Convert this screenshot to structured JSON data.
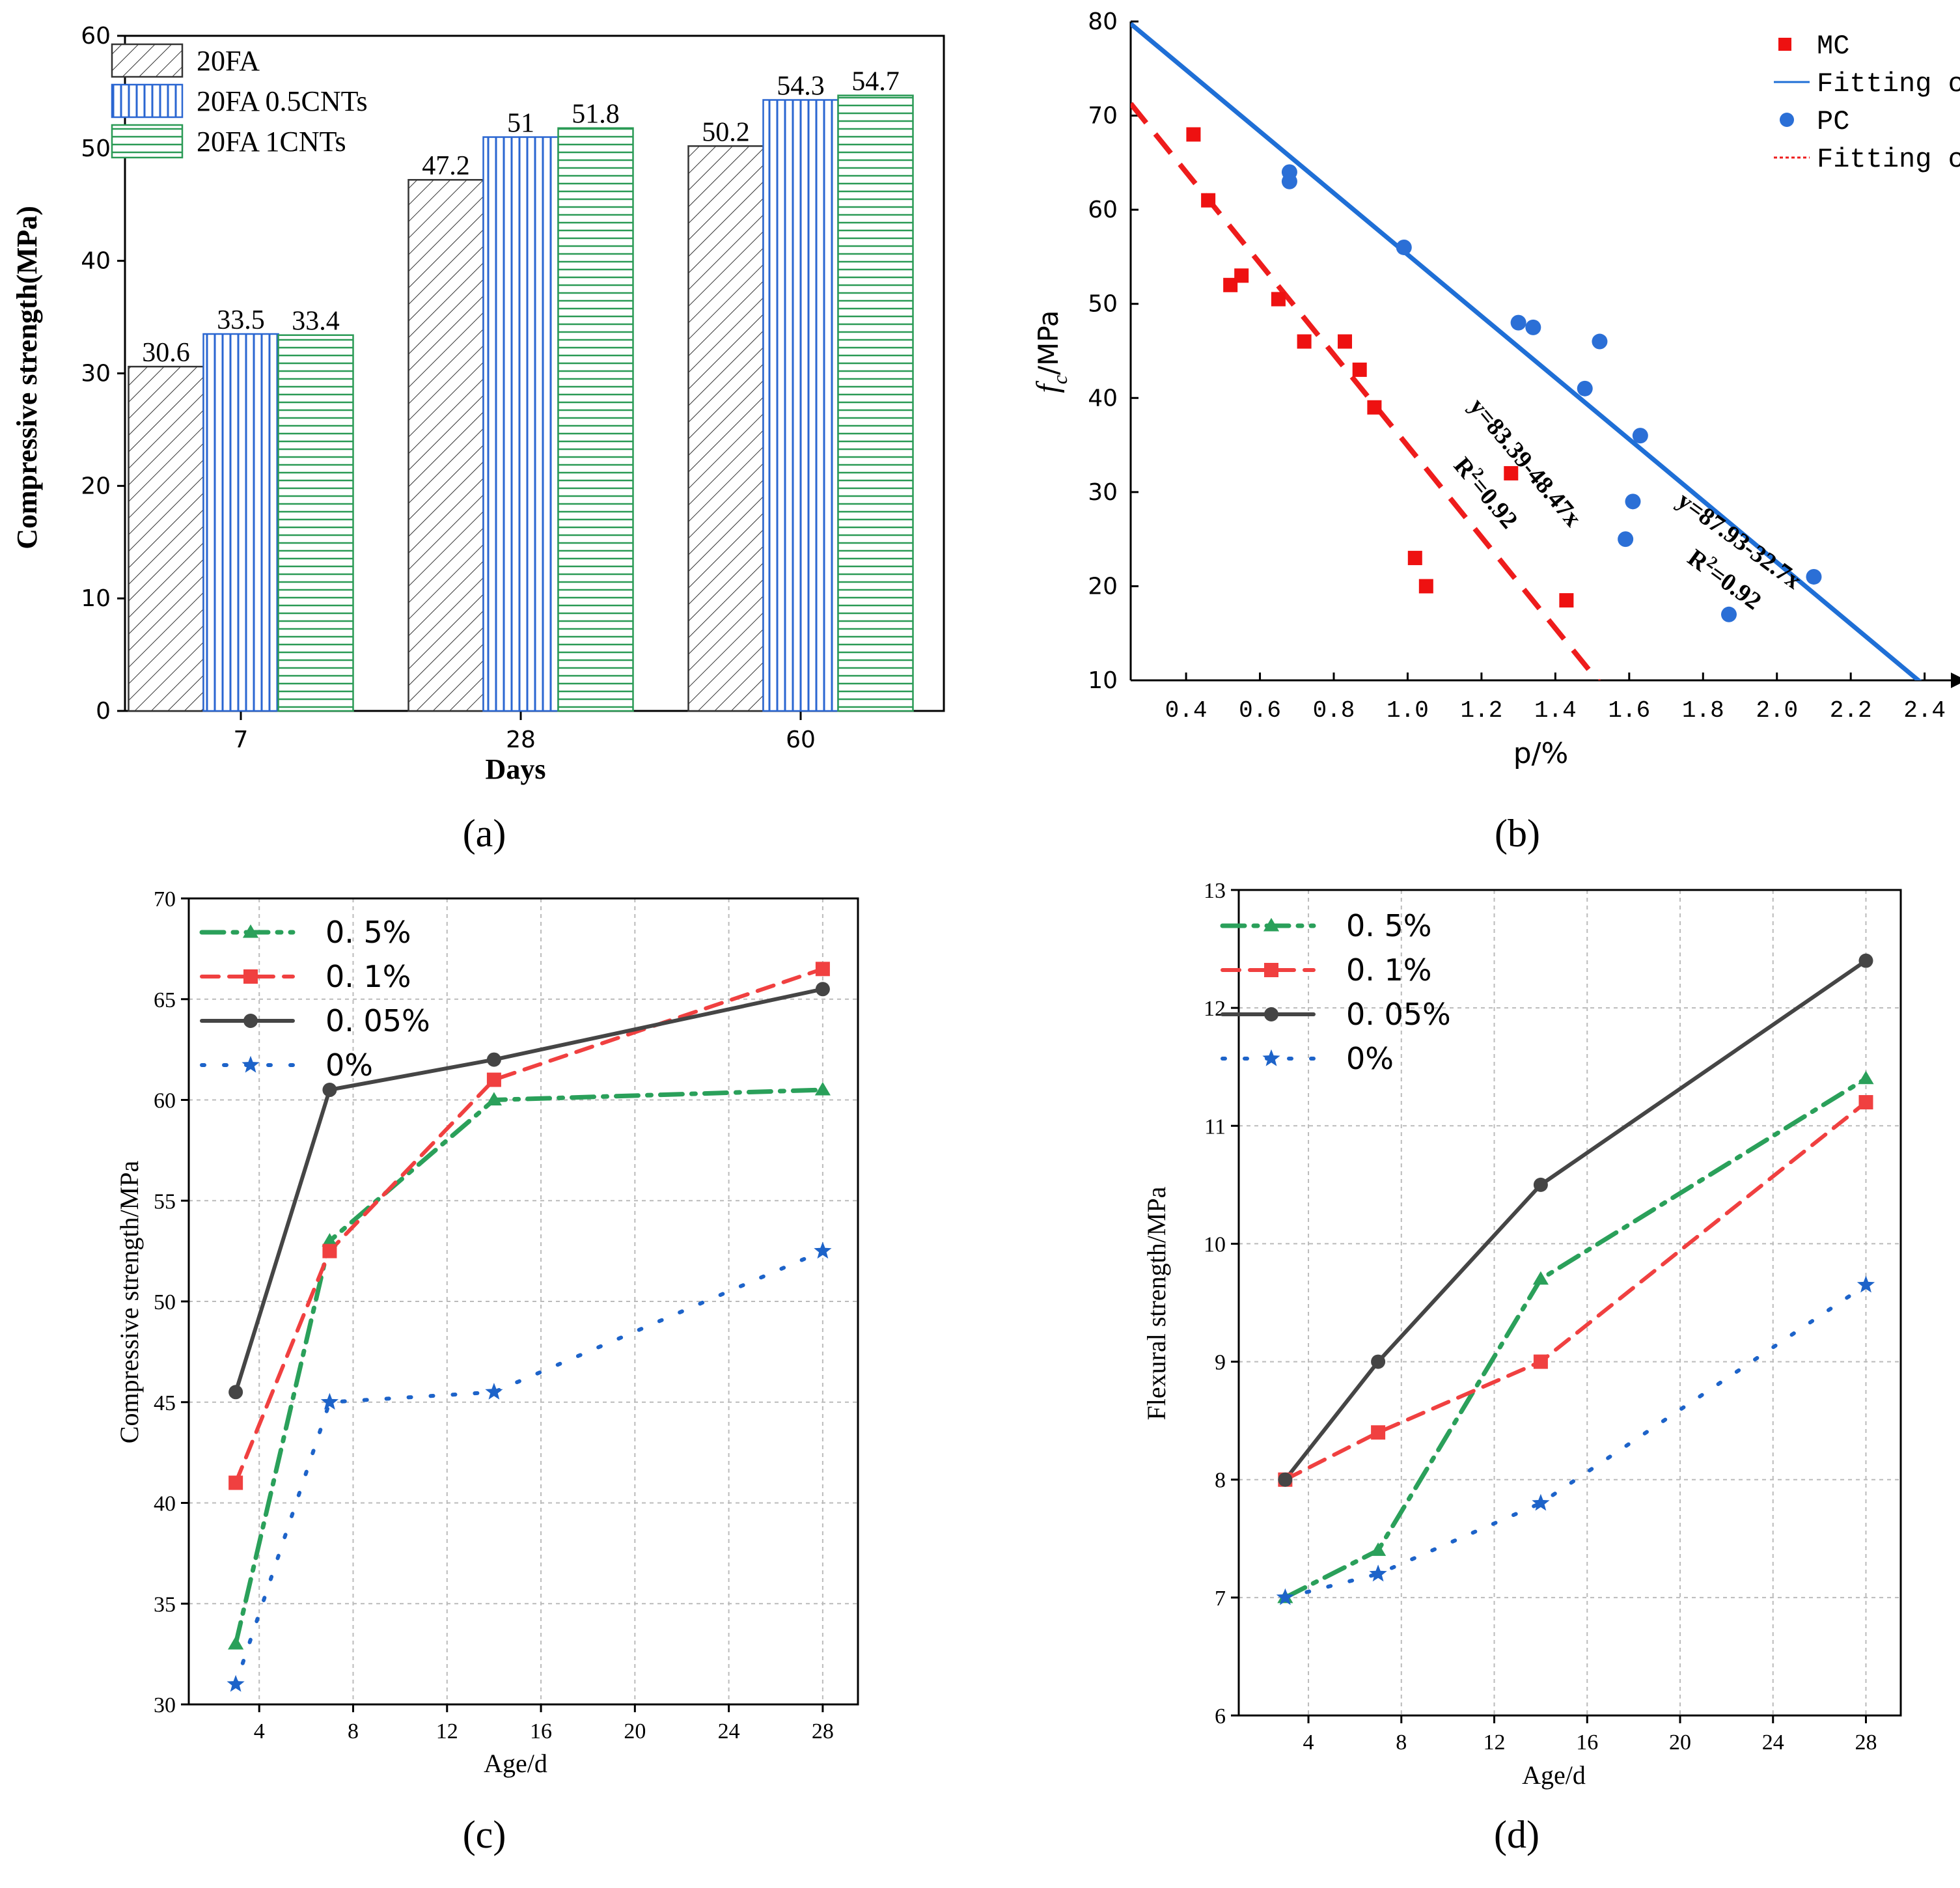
{
  "colors": {
    "black": "#000000",
    "red": "#ee1c1c",
    "blue": "#1f6fd6",
    "mcRed": "#ee1111",
    "pcBlue": "#2b6fd6",
    "cGreen": "#2aa05a",
    "cRed": "#f04040",
    "cDark": "#454545",
    "cBlue": "#1d63c9",
    "hatchBlack": "#333333",
    "hatchBlue": "#2a66d1",
    "hatchGreen": "#2a9a55"
  },
  "chart_data": [
    {
      "id": "a",
      "type": "bar",
      "panel_label": "(a)",
      "categories": [
        "7",
        "28",
        "60"
      ],
      "series": [
        {
          "name": "20FA",
          "values": [
            30.6,
            47.2,
            50.2
          ],
          "labels": [
            "30.6",
            "47.2",
            "50.2"
          ]
        },
        {
          "name": "20FA 0.5CNTs",
          "values": [
            33.5,
            51,
            54.3
          ],
          "labels": [
            "33.5",
            "51",
            "54.3"
          ]
        },
        {
          "name": "20FA   1CNTs",
          "values": [
            33.4,
            51.8,
            54.7
          ],
          "labels": [
            "33.4",
            "51.8",
            "54.7"
          ]
        }
      ],
      "xlabel": "Days",
      "ylabel": "Compressive strength(MPa)",
      "ylim": [
        0,
        60
      ],
      "yticks": [
        0,
        10,
        20,
        30,
        40,
        50,
        60
      ],
      "ytick_labels": [
        "0",
        "10",
        "20",
        "30",
        "40",
        "50",
        "60"
      ],
      "legend": "top-left"
    },
    {
      "id": "b",
      "type": "scatter",
      "panel_label": "(b)",
      "xlabel": "p/%",
      "ylabel_main": "f",
      "ylabel_sub": "c",
      "ylabel_rest": "/MPa",
      "xlim": [
        0.25,
        2.45
      ],
      "ylim": [
        10,
        80
      ],
      "xticks": [
        0.4,
        0.6,
        0.8,
        1.0,
        1.2,
        1.4,
        1.6,
        1.8,
        2.0,
        2.2,
        2.4
      ],
      "xtick_labels": [
        "0.4",
        "0.6",
        "0.8",
        "1.0",
        "1.2",
        "1.4",
        "1.6",
        "1.8",
        "2.0",
        "2.2",
        "2.4"
      ],
      "yticks": [
        10,
        20,
        30,
        40,
        50,
        60,
        70,
        80
      ],
      "ytick_labels": [
        "10",
        "20",
        "30",
        "40",
        "50",
        "60",
        "70",
        "80"
      ],
      "series": [
        {
          "name": "MC",
          "marker": "square",
          "x": [
            0.42,
            0.46,
            0.52,
            0.55,
            0.65,
            0.72,
            0.83,
            0.87,
            0.91,
            1.02,
            1.05,
            1.28,
            1.43
          ],
          "y": [
            68,
            61,
            52,
            53,
            50.5,
            46,
            46,
            43,
            39,
            23,
            20,
            32,
            18.5
          ]
        },
        {
          "name": "PC",
          "marker": "circle",
          "x": [
            0.68,
            0.68,
            0.99,
            1.3,
            1.34,
            1.48,
            1.52,
            1.59,
            1.61,
            1.63,
            1.87,
            2.1
          ],
          "y": [
            64,
            63,
            56,
            48,
            47.5,
            41,
            46,
            25,
            29,
            36,
            17,
            21
          ]
        }
      ],
      "fits": [
        {
          "name": "Fitting curve",
          "for": "PC",
          "intercept": 87.93,
          "slope": -32.7,
          "equation": "y=87.93-32.7x",
          "r2": "R²=0.92",
          "r2_main": "R",
          "r2_sup": "2",
          "r2_rest": "=0.92",
          "style": "solid"
        },
        {
          "name": "Fitting curve",
          "for": "MC",
          "intercept": 83.39,
          "slope": -48.47,
          "equation": "y=83.39-48.47x",
          "r2": "R²=0.92",
          "r2_main": "R",
          "r2_sup": "2",
          "r2_rest": "=0.92",
          "style": "dashed"
        }
      ],
      "legend_entries": [
        "MC",
        "Fitting curve",
        "PC",
        "Fitting curve"
      ],
      "legend": "top-right"
    },
    {
      "id": "c",
      "type": "line",
      "panel_label": "(c)",
      "xlabel": "Age/d",
      "ylabel": "Compressive strength/MPa",
      "xlim": [
        1,
        29.5
      ],
      "ylim": [
        30,
        70
      ],
      "xticks": [
        4,
        8,
        12,
        16,
        20,
        24,
        28
      ],
      "xtick_labels": [
        "4",
        "8",
        "12",
        "16",
        "20",
        "24",
        "28"
      ],
      "yticks": [
        30,
        35,
        40,
        45,
        50,
        55,
        60,
        65,
        70
      ],
      "ytick_labels": [
        "30",
        "35",
        "40",
        "45",
        "50",
        "55",
        "60",
        "65",
        "70"
      ],
      "x": [
        3,
        7,
        14,
        28
      ],
      "series": [
        {
          "name": "0. 5%",
          "values": [
            33,
            53,
            60,
            60.5
          ],
          "marker": "triangle",
          "style": "dashdot"
        },
        {
          "name": "0. 1%",
          "values": [
            41,
            52.5,
            61,
            66.5
          ],
          "marker": "square",
          "style": "dashed"
        },
        {
          "name": "0. 05%",
          "values": [
            45.5,
            60.5,
            62,
            65.5
          ],
          "marker": "circle",
          "style": "solid"
        },
        {
          "name": "0%",
          "values": [
            31,
            45,
            45.5,
            52.5
          ],
          "marker": "star",
          "style": "dotted"
        }
      ],
      "legend": "top-left"
    },
    {
      "id": "d",
      "type": "line",
      "panel_label": "(d)",
      "xlabel": "Age/d",
      "ylabel": "Flexural strength/MPa",
      "xlim": [
        1,
        29.5
      ],
      "ylim": [
        6,
        13
      ],
      "xticks": [
        4,
        8,
        12,
        16,
        20,
        24,
        28
      ],
      "xtick_labels": [
        "4",
        "8",
        "12",
        "16",
        "20",
        "24",
        "28"
      ],
      "yticks": [
        6,
        7,
        8,
        9,
        10,
        11,
        12,
        13
      ],
      "ytick_labels": [
        "6",
        "7",
        "8",
        "9",
        "10",
        "11",
        "12",
        "13"
      ],
      "x": [
        3,
        7,
        14,
        28
      ],
      "series": [
        {
          "name": "0. 5%",
          "values": [
            7,
            7.4,
            9.7,
            11.4
          ],
          "marker": "triangle",
          "style": "dashdot"
        },
        {
          "name": "0. 1%",
          "values": [
            8,
            8.4,
            9,
            11.2
          ],
          "marker": "square",
          "style": "dashed"
        },
        {
          "name": "0. 05%",
          "values": [
            8,
            9,
            10.5,
            12.4
          ],
          "marker": "circle",
          "style": "solid"
        },
        {
          "name": "0%",
          "values": [
            7,
            7.2,
            7.8,
            9.65
          ],
          "marker": "star",
          "style": "dotted"
        }
      ],
      "legend": "top-left"
    }
  ]
}
